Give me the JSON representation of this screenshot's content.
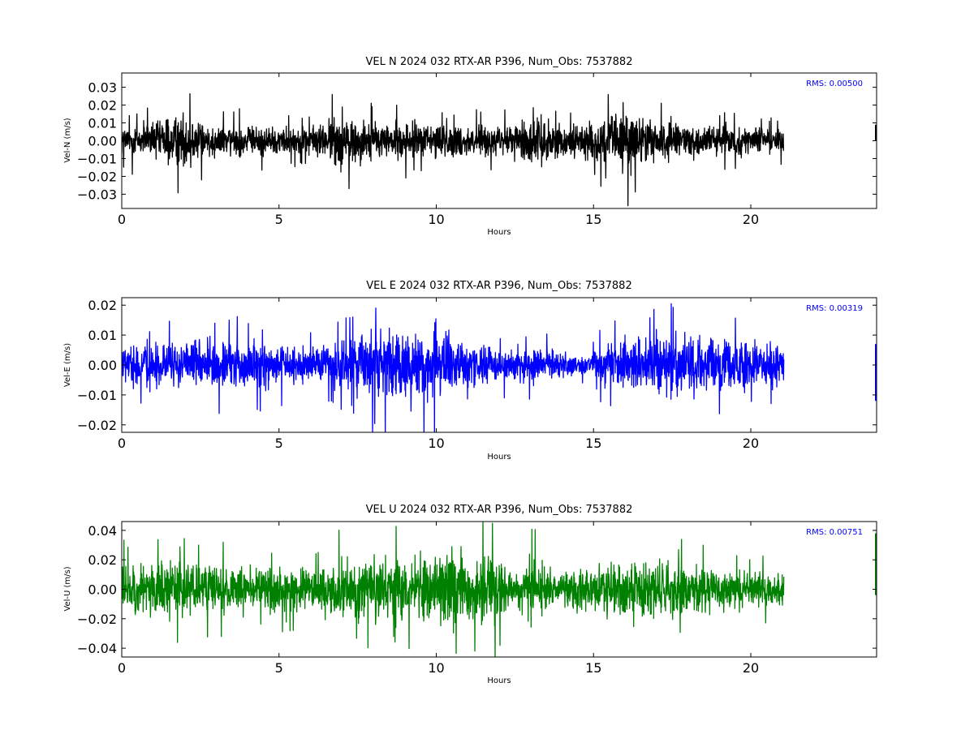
{
  "colors": {
    "north": "#000000",
    "east": "#0000ff",
    "up": "#008000",
    "rms_text": "#0000ff"
  },
  "chart_data": [
    {
      "type": "line",
      "title": "VEL N 2024 032 RTX-AR  P396, Num_Obs: 7537882",
      "xlabel": "Hours",
      "ylabel": "Vel-N (m/s)",
      "xlim": [
        0,
        24
      ],
      "ylim": [
        -0.038,
        0.038
      ],
      "xticks": [
        0,
        5,
        10,
        15,
        20
      ],
      "xtick_labels": [
        "0",
        "5",
        "10",
        "15",
        "20"
      ],
      "yticks": [
        -0.03,
        -0.02,
        -0.01,
        0.0,
        0.01,
        0.02,
        0.03
      ],
      "ytick_labels": [
        "−0.03",
        "−0.02",
        "−0.01",
        "0.00",
        "0.01",
        "0.02",
        "0.03"
      ],
      "annotation": "RMS:  0.00500",
      "series": [
        {
          "color": "#000000",
          "envelope": {
            "x": [
              0,
              1,
              1.5,
              2,
              3,
              4,
              5,
              6,
              6.5,
              7,
              7.5,
              8,
              9,
              10,
              10.5,
              11,
              12,
              12.5,
              13,
              13.5,
              14,
              15,
              15.5,
              16,
              16.5,
              17,
              18,
              19,
              20,
              21
            ],
            "amplitude": [
              0.012,
              0.015,
              0.02,
              0.02,
              0.012,
              0.012,
              0.011,
              0.011,
              0.015,
              0.022,
              0.018,
              0.014,
              0.014,
              0.015,
              0.013,
              0.012,
              0.011,
              0.013,
              0.022,
              0.017,
              0.012,
              0.015,
              0.02,
              0.028,
              0.022,
              0.015,
              0.014,
              0.011,
              0.01,
              0.009
            ]
          },
          "rms": 0.005,
          "data_end_hour": 21.05,
          "end_segment": {
            "x": 24.0,
            "min": 0.0,
            "max": 0.009
          }
        }
      ]
    },
    {
      "type": "line",
      "title": "VEL E 2024 032 RTX-AR  P396, Num_Obs: 7537882",
      "xlabel": "Hours",
      "ylabel": "Vel-E (m/s)",
      "xlim": [
        0,
        24
      ],
      "ylim": [
        -0.0225,
        0.0225
      ],
      "xticks": [
        0,
        5,
        10,
        15,
        20
      ],
      "xtick_labels": [
        "0",
        "5",
        "10",
        "15",
        "20"
      ],
      "yticks": [
        -0.02,
        -0.01,
        0.0,
        0.01,
        0.02
      ],
      "ytick_labels": [
        "−0.02",
        "−0.01",
        "0.00",
        "0.01",
        "0.02"
      ],
      "annotation": "RMS:  0.00319",
      "series": [
        {
          "color": "#0000ff",
          "envelope": {
            "x": [
              0,
              1,
              2,
              3,
              4,
              5,
              6,
              7,
              7.5,
              8,
              9,
              10,
              10.5,
              11,
              12,
              13,
              14,
              14.5,
              15,
              15.5,
              16,
              17,
              18,
              19,
              20,
              21
            ],
            "amplitude": [
              0.01,
              0.01,
              0.01,
              0.011,
              0.011,
              0.01,
              0.008,
              0.01,
              0.013,
              0.016,
              0.016,
              0.018,
              0.014,
              0.01,
              0.008,
              0.008,
              0.007,
              0.004,
              0.006,
              0.012,
              0.013,
              0.014,
              0.015,
              0.012,
              0.011,
              0.009
            ]
          },
          "rms": 0.00319,
          "data_end_hour": 21.05,
          "end_segment": {
            "x": 24.0,
            "min": -0.012,
            "max": 0.007
          }
        }
      ]
    },
    {
      "type": "line",
      "title": "VEL U 2024 032 RTX-AR  P396, Num_Obs: 7537882",
      "xlabel": "Hours",
      "ylabel": "Vel-U (m/s)",
      "xlim": [
        0,
        24
      ],
      "ylim": [
        -0.046,
        0.046
      ],
      "xticks": [
        0,
        5,
        10,
        15,
        20
      ],
      "xtick_labels": [
        "0",
        "5",
        "10",
        "15",
        "20"
      ],
      "yticks": [
        -0.04,
        -0.02,
        0.0,
        0.02,
        0.04
      ],
      "ytick_labels": [
        "−0.04",
        "−0.02",
        "0.00",
        "0.02",
        "0.04"
      ],
      "annotation": "RMS:  0.00751",
      "series": [
        {
          "color": "#008000",
          "envelope": {
            "x": [
              0,
              1,
              2,
              3,
              4,
              5,
              6,
              7,
              8,
              9,
              10,
              10.5,
              11,
              11.5,
              12,
              12.3,
              12.6,
              13,
              13.5,
              14,
              15,
              16,
              17,
              18,
              19,
              20,
              21
            ],
            "amplitude": [
              0.022,
              0.028,
              0.024,
              0.023,
              0.022,
              0.02,
              0.018,
              0.028,
              0.03,
              0.028,
              0.034,
              0.035,
              0.032,
              0.035,
              0.036,
              0.015,
              0.018,
              0.032,
              0.02,
              0.016,
              0.025,
              0.028,
              0.026,
              0.022,
              0.02,
              0.017,
              0.015
            ]
          },
          "rms": 0.00751,
          "data_end_hour": 21.05,
          "end_segment": {
            "x": 24.0,
            "min": -0.004,
            "max": 0.038
          }
        }
      ]
    }
  ]
}
